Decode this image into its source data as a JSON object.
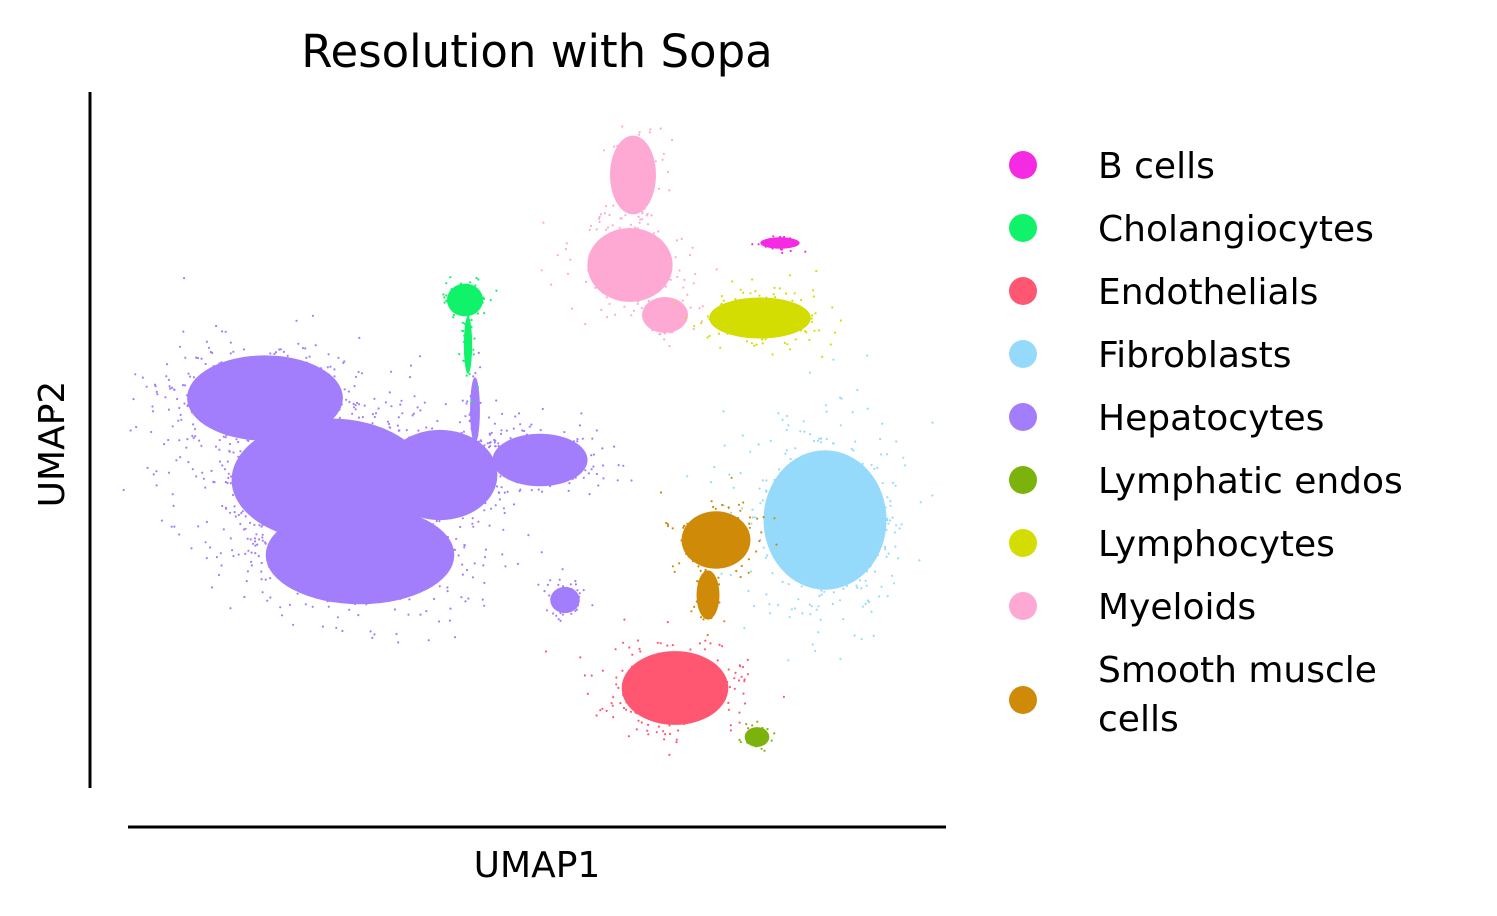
{
  "chart_data": {
    "type": "scatter",
    "title": "Resolution with Sopa",
    "xlabel": "UMAP1",
    "ylabel": "UMAP2",
    "grid": false,
    "ticks": false,
    "legend_position": "right",
    "series": [
      {
        "name": "B cells",
        "color": "#f52ae3"
      },
      {
        "name": "Cholangiocytes",
        "color": "#10f26a"
      },
      {
        "name": "Endothelials",
        "color": "#ff5772"
      },
      {
        "name": "Fibroblasts",
        "color": "#95dafb"
      },
      {
        "name": "Hepatocytes",
        "color": "#a27dfc"
      },
      {
        "name": "Lymphatic endos",
        "color": "#7bb30c"
      },
      {
        "name": "Lymphocytes",
        "color": "#d4dd02"
      },
      {
        "name": "Myeloids",
        "color": "#fda9d4"
      },
      {
        "name": "Smooth muscle cells",
        "color": "#cf8b08",
        "display_lines": [
          "Smooth muscle",
          "cells"
        ]
      }
    ]
  }
}
